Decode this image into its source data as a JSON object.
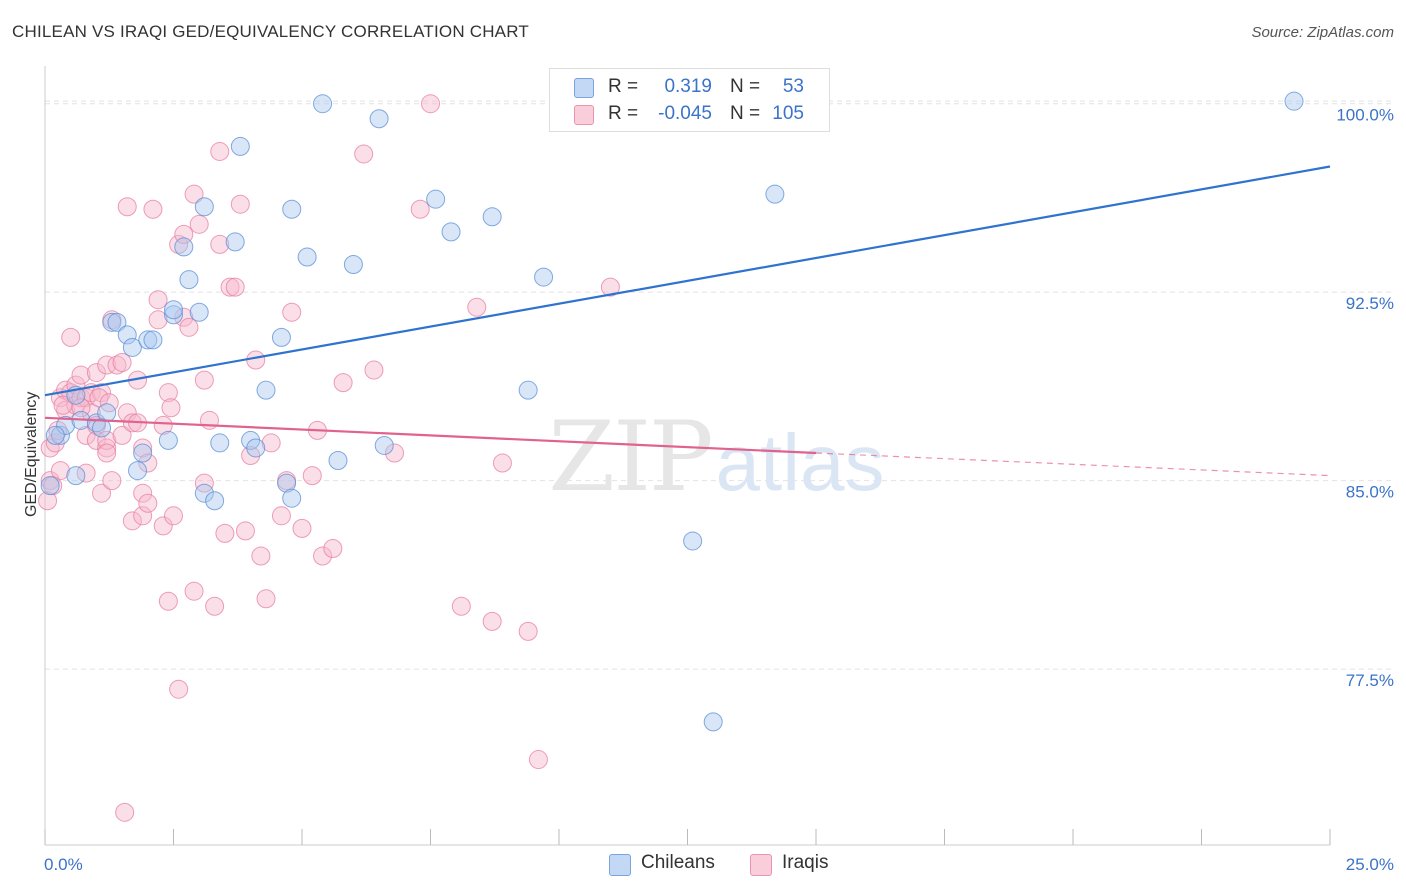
{
  "header": {
    "title": "CHILEAN VS IRAQI GED/EQUIVALENCY CORRELATION CHART",
    "source": "Source: ZipAtlas.com"
  },
  "watermark": {
    "zip": "ZIP",
    "atlas": "atlas"
  },
  "colors": {
    "blue_fill": "#a9c8f0",
    "blue_stroke": "#5b8fd6",
    "blue_line": "#2e73cf",
    "pink_fill": "#f7b8cc",
    "pink_stroke": "#e77fa0",
    "pink_line": "#e2628e",
    "grid": "#e2e2e2",
    "tick_text": "#3b73c8"
  },
  "legend": {
    "rows": [
      {
        "r_label": "R =",
        "r_value": "0.319",
        "n_label": "N =",
        "n_value": "53"
      },
      {
        "r_label": "R =",
        "r_value": "-0.045",
        "n_label": "N =",
        "n_value": "105"
      }
    ]
  },
  "bottom_legend": {
    "chileans": "Chileans",
    "iraqis": "Iraqis"
  },
  "chart_data": {
    "type": "scatter",
    "title": "CHILEAN VS IRAQI GED/EQUIVALENCY CORRELATION CHART",
    "xlabel": "",
    "ylabel": "GED/Equivalency",
    "xlim": [
      0,
      25
    ],
    "ylim": [
      70.5,
      101.5
    ],
    "x_tick_labels": [
      "0.0%",
      "25.0%"
    ],
    "y_ticks": [
      77.5,
      85.0,
      92.5,
      100.0
    ],
    "y_tick_labels": [
      "77.5%",
      "85.0%",
      "92.5%",
      "100.0%"
    ],
    "grid": true,
    "legend_position": "top-center",
    "series": [
      {
        "name": "Chileans",
        "trend": {
          "x": [
            0,
            25
          ],
          "y": [
            88.4,
            97.5
          ]
        },
        "points": [
          [
            0.1,
            84.8
          ],
          [
            0.3,
            86.8
          ],
          [
            0.4,
            87.2
          ],
          [
            0.6,
            85.2
          ],
          [
            0.6,
            88.4
          ],
          [
            0.7,
            87.4
          ],
          [
            1.0,
            87.3
          ],
          [
            1.2,
            87.7
          ],
          [
            1.3,
            91.3
          ],
          [
            1.4,
            91.3
          ],
          [
            1.6,
            90.8
          ],
          [
            1.7,
            90.3
          ],
          [
            1.8,
            85.4
          ],
          [
            1.9,
            86.1
          ],
          [
            2.0,
            90.6
          ],
          [
            2.1,
            90.6
          ],
          [
            2.4,
            86.6
          ],
          [
            2.5,
            91.6
          ],
          [
            2.5,
            91.8
          ],
          [
            2.7,
            94.3
          ],
          [
            2.8,
            93.0
          ],
          [
            3.0,
            91.7
          ],
          [
            3.1,
            84.5
          ],
          [
            3.1,
            95.9
          ],
          [
            3.3,
            84.2
          ],
          [
            3.4,
            86.5
          ],
          [
            3.7,
            94.5
          ],
          [
            3.8,
            98.3
          ],
          [
            4.0,
            86.6
          ],
          [
            4.1,
            86.3
          ],
          [
            4.3,
            88.6
          ],
          [
            4.6,
            90.7
          ],
          [
            4.7,
            84.9
          ],
          [
            4.8,
            95.8
          ],
          [
            4.8,
            84.3
          ],
          [
            5.1,
            93.9
          ],
          [
            5.4,
            100.0
          ],
          [
            5.7,
            85.8
          ],
          [
            6.0,
            93.6
          ],
          [
            6.5,
            99.4
          ],
          [
            6.6,
            86.4
          ],
          [
            7.6,
            96.2
          ],
          [
            7.9,
            94.9
          ],
          [
            8.7,
            95.5
          ],
          [
            9.4,
            88.6
          ],
          [
            9.7,
            93.1
          ],
          [
            12.6,
            82.6
          ],
          [
            13.0,
            75.4
          ],
          [
            14.0,
            100.0
          ],
          [
            14.2,
            96.4
          ],
          [
            24.3,
            100.1
          ],
          [
            0.2,
            86.8
          ],
          [
            1.1,
            87.1
          ]
        ]
      },
      {
        "name": "Iraqis",
        "trend": {
          "x": [
            0,
            15
          ],
          "y": [
            87.5,
            86.1
          ]
        },
        "trend_extension": {
          "x": [
            15,
            25
          ],
          "y": [
            86.1,
            85.2
          ]
        },
        "points": [
          [
            0.05,
            84.2
          ],
          [
            0.1,
            85.0
          ],
          [
            0.1,
            86.3
          ],
          [
            0.2,
            86.5
          ],
          [
            0.3,
            85.4
          ],
          [
            0.3,
            88.3
          ],
          [
            0.4,
            88.6
          ],
          [
            0.4,
            87.8
          ],
          [
            0.5,
            88.5
          ],
          [
            0.5,
            90.7
          ],
          [
            0.6,
            88.0
          ],
          [
            0.6,
            88.8
          ],
          [
            0.7,
            89.2
          ],
          [
            0.7,
            88.3
          ],
          [
            0.8,
            86.8
          ],
          [
            0.8,
            88.3
          ],
          [
            0.8,
            85.3
          ],
          [
            0.9,
            88.5
          ],
          [
            0.9,
            87.7
          ],
          [
            1.0,
            87.2
          ],
          [
            1.0,
            86.6
          ],
          [
            1.0,
            89.3
          ],
          [
            1.1,
            84.5
          ],
          [
            1.1,
            88.5
          ],
          [
            1.2,
            86.3
          ],
          [
            1.2,
            89.6
          ],
          [
            1.2,
            86.6
          ],
          [
            1.2,
            86.1
          ],
          [
            1.3,
            91.4
          ],
          [
            1.3,
            85.0
          ],
          [
            1.4,
            89.6
          ],
          [
            1.5,
            89.7
          ],
          [
            1.5,
            86.8
          ],
          [
            1.6,
            87.7
          ],
          [
            1.6,
            95.9
          ],
          [
            1.7,
            83.4
          ],
          [
            1.7,
            87.3
          ],
          [
            1.8,
            87.3
          ],
          [
            1.8,
            89.0
          ],
          [
            1.9,
            84.5
          ],
          [
            1.9,
            86.3
          ],
          [
            1.9,
            83.6
          ],
          [
            2.0,
            85.7
          ],
          [
            2.0,
            84.1
          ],
          [
            2.1,
            95.8
          ],
          [
            2.2,
            92.2
          ],
          [
            2.2,
            91.4
          ],
          [
            2.3,
            87.2
          ],
          [
            2.3,
            83.2
          ],
          [
            2.4,
            88.5
          ],
          [
            2.4,
            80.2
          ],
          [
            2.5,
            83.6
          ],
          [
            2.6,
            94.4
          ],
          [
            2.6,
            76.7
          ],
          [
            2.7,
            94.8
          ],
          [
            2.7,
            91.5
          ],
          [
            2.8,
            91.1
          ],
          [
            2.9,
            96.4
          ],
          [
            2.9,
            80.6
          ],
          [
            3.0,
            95.2
          ],
          [
            3.1,
            84.9
          ],
          [
            3.1,
            89.0
          ],
          [
            3.2,
            87.4
          ],
          [
            3.3,
            80.0
          ],
          [
            3.4,
            94.4
          ],
          [
            3.4,
            98.1
          ],
          [
            3.5,
            82.9
          ],
          [
            3.6,
            92.7
          ],
          [
            3.7,
            92.7
          ],
          [
            3.8,
            96.0
          ],
          [
            3.9,
            83.0
          ],
          [
            4.0,
            86.0
          ],
          [
            4.1,
            89.8
          ],
          [
            4.2,
            82.0
          ],
          [
            4.3,
            80.3
          ],
          [
            4.4,
            86.5
          ],
          [
            4.6,
            83.6
          ],
          [
            4.8,
            91.7
          ],
          [
            5.0,
            83.1
          ],
          [
            5.2,
            85.2
          ],
          [
            5.3,
            87.0
          ],
          [
            5.4,
            82.0
          ],
          [
            5.6,
            82.3
          ],
          [
            5.8,
            88.9
          ],
          [
            6.2,
            98.0
          ],
          [
            6.4,
            89.4
          ],
          [
            6.8,
            86.1
          ],
          [
            7.3,
            95.8
          ],
          [
            7.5,
            100.0
          ],
          [
            8.1,
            80.0
          ],
          [
            8.4,
            91.9
          ],
          [
            8.7,
            79.4
          ],
          [
            8.9,
            85.7
          ],
          [
            9.4,
            79.0
          ],
          [
            9.6,
            73.9
          ],
          [
            11.0,
            92.7
          ],
          [
            0.15,
            84.8
          ],
          [
            0.25,
            87.0
          ],
          [
            1.55,
            71.8
          ],
          [
            0.7,
            87.9
          ],
          [
            1.05,
            88.3
          ],
          [
            2.45,
            87.9
          ],
          [
            0.35,
            88.0
          ],
          [
            4.7,
            85.0
          ],
          [
            1.25,
            88.1
          ]
        ]
      }
    ]
  }
}
